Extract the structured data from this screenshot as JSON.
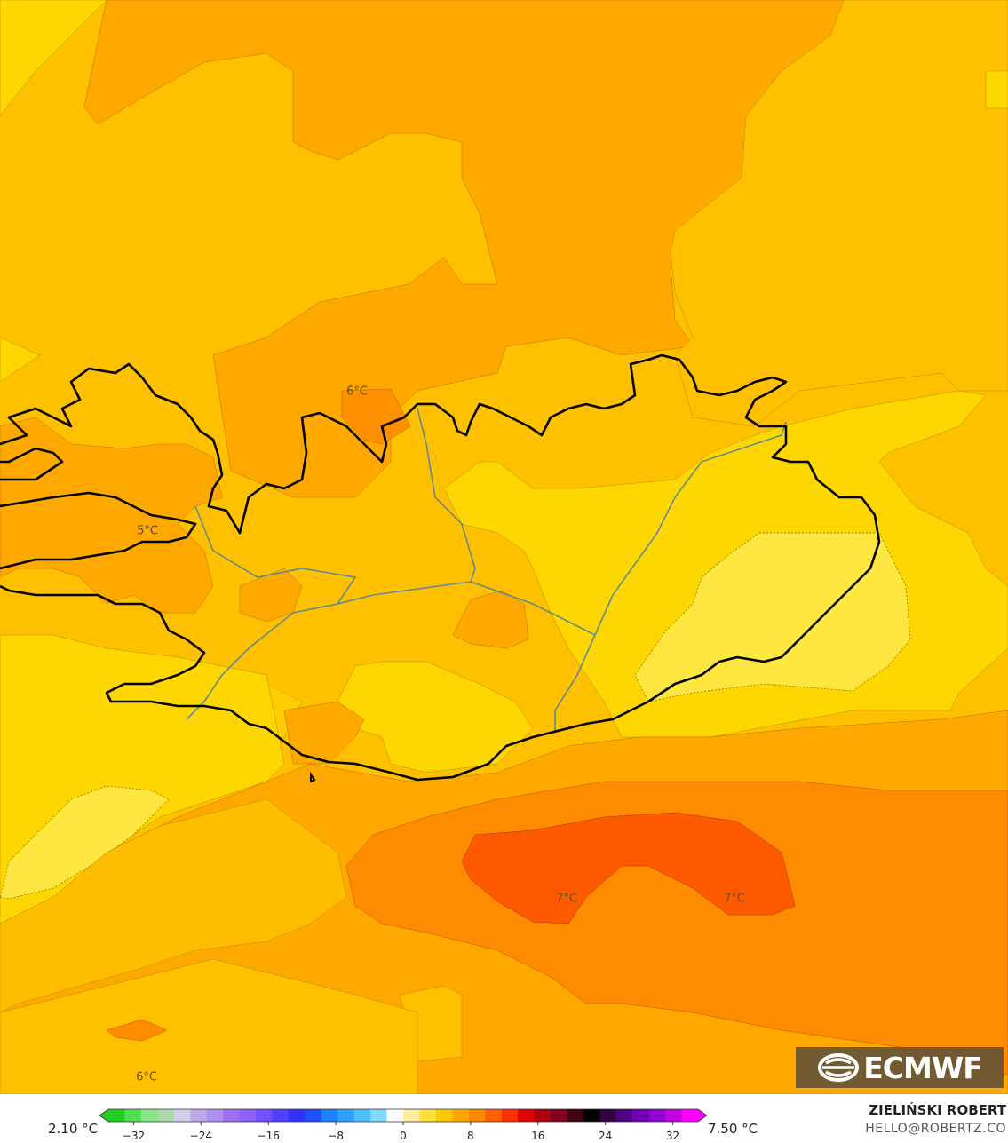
{
  "map": {
    "contour_labels": [
      {
        "id": "label-6c-north",
        "text": "6°C"
      },
      {
        "id": "label-5c-west",
        "text": "5°C"
      },
      {
        "id": "label-7c-south-a",
        "text": "7°C"
      },
      {
        "id": "label-7c-south-b",
        "text": "7°C"
      },
      {
        "id": "label-6c-southwest",
        "text": "6°C"
      }
    ],
    "colors": {
      "band_5_5": "#ffd700",
      "band_5_75": "#ffc000",
      "band_6": "#ffa800",
      "band_6_5": "#ff8c00",
      "band_7": "#ff5a00",
      "band_light": "#ffe640",
      "coastline": "#000000",
      "border": "#6a8a8a"
    }
  },
  "logo": {
    "text": "ECMWF",
    "icon": "ecmwf-logo-icon"
  },
  "legend": {
    "min_label": "2.10 °C",
    "max_label": "7.50 °C",
    "ticks": [
      "−32",
      "−24",
      "−16",
      "−8",
      "0",
      "8",
      "16",
      "24",
      "32"
    ],
    "tick_values": [
      -32,
      -24,
      -16,
      -8,
      0,
      8,
      16,
      24,
      32
    ],
    "range": [
      -35,
      35
    ],
    "colors": [
      "#22cc22",
      "#55dd55",
      "#88e888",
      "#aadcaa",
      "#cfcfe8",
      "#c0a8e8",
      "#b090f0",
      "#a070f0",
      "#9060ff",
      "#7050ff",
      "#5040ff",
      "#3030ff",
      "#2050ff",
      "#2080ff",
      "#30a0ff",
      "#50c0ff",
      "#80d8ff",
      "#ffffff",
      "#fff0a0",
      "#ffe040",
      "#ffc800",
      "#ffa800",
      "#ff8800",
      "#ff6000",
      "#ff3000",
      "#e00000",
      "#b00010",
      "#800020",
      "#400010",
      "#000000",
      "#300040",
      "#500080",
      "#7000b0",
      "#9000d0",
      "#c000e0",
      "#ff00ff"
    ]
  },
  "credit": {
    "name": "ZIELIŃSKI ROBERT",
    "email": "HELLO@ROBERTZ.CO"
  }
}
